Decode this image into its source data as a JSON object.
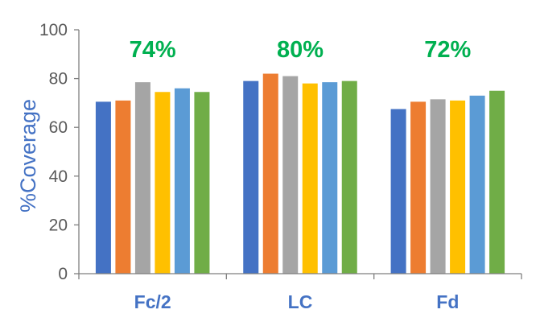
{
  "chart_data": {
    "type": "bar",
    "ylabel": "%Coverage",
    "xlabel": "",
    "ylim": [
      0,
      100
    ],
    "yticks": [
      0,
      20,
      40,
      60,
      80,
      100
    ],
    "grid": false,
    "categories": [
      "Fc/2",
      "LC",
      "Fd"
    ],
    "annotations": [
      "74%",
      "80%",
      "72%"
    ],
    "colors": [
      "#4472c4",
      "#ed7d31",
      "#a5a5a5",
      "#ffc000",
      "#5b9bd5",
      "#70ad47"
    ],
    "series": [
      {
        "values": [
          70.5,
          79,
          67.5
        ]
      },
      {
        "values": [
          71,
          82,
          70.5
        ]
      },
      {
        "values": [
          78.5,
          81,
          71.5
        ]
      },
      {
        "values": [
          74.5,
          78,
          71
        ]
      },
      {
        "values": [
          76,
          78.5,
          73
        ]
      },
      {
        "values": [
          74.5,
          79,
          75
        ]
      }
    ]
  }
}
